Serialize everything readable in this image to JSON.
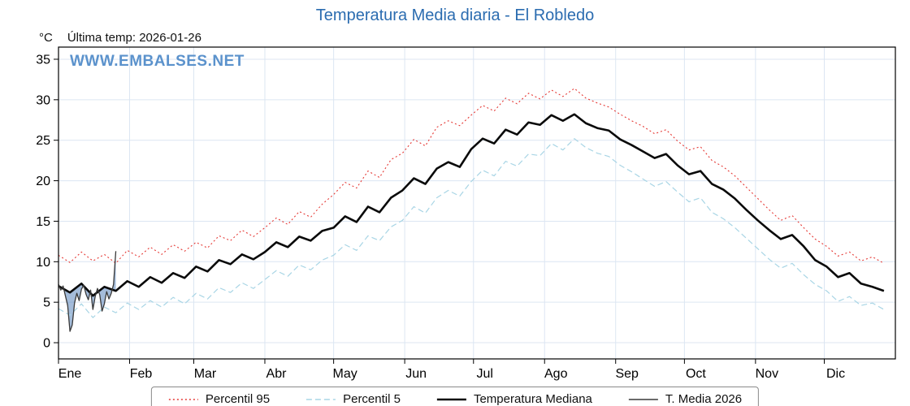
{
  "title": "Temperatura Media diaria - El Robledo",
  "header": {
    "unit_label": "°C",
    "last_temp_label": "Última temp: 2026-01-26",
    "watermark": "WWW.EMBALSES.NET"
  },
  "colors": {
    "title": "#2b6cb0",
    "watermark": "#5b92cc",
    "grid": "#dce6f2",
    "axis": "#000000",
    "anomaly_fill": "#4a7ab5"
  },
  "chart_data": {
    "type": "line",
    "title": "Temperatura Media diaria - El Robledo",
    "xlabel": "",
    "ylabel": "°C",
    "ylim": [
      -2,
      36.5
    ],
    "x_max": 365,
    "grid": true,
    "legend_position": "bottom",
    "y_ticks": [
      0,
      5,
      10,
      15,
      20,
      25,
      30,
      35
    ],
    "x_tick_days": [
      0,
      31,
      59,
      90,
      120,
      151,
      181,
      212,
      243,
      273,
      304,
      334
    ],
    "x_tick_labels": [
      "Ene",
      "Feb",
      "Mar",
      "Abr",
      "May",
      "Jun",
      "Jul",
      "Ago",
      "Sep",
      "Oct",
      "Nov",
      "Dic"
    ],
    "grid_color": "#dce6f2",
    "watermark_color": "#5b92cc",
    "fill_between": {
      "upper": "Temperatura Mediana",
      "lower": "T. Media 2026",
      "color": "#4a7ab5",
      "opacity": 0.5
    },
    "series": [
      {
        "name": "Percentil 95",
        "key": "percentil-95",
        "color": "#e53935",
        "style": "dotted",
        "width": 1.1,
        "x_step": 5,
        "values": [
          10.8,
          9.9,
          11.2,
          10.1,
          10.9,
          9.8,
          11.4,
          10.6,
          11.8,
          10.9,
          12.1,
          11.3,
          12.4,
          11.7,
          13.2,
          12.6,
          13.9,
          13.1,
          14.2,
          15.4,
          14.6,
          16.2,
          15.5,
          17.1,
          18.3,
          19.8,
          19.1,
          21.2,
          20.4,
          22.6,
          23.4,
          25.1,
          24.3,
          26.6,
          27.4,
          26.8,
          28.1,
          29.3,
          28.6,
          30.2,
          29.5,
          30.8,
          30.1,
          31.2,
          30.4,
          31.4,
          30.2,
          29.6,
          29.1,
          28.2,
          27.4,
          26.7,
          25.8,
          26.3,
          24.9,
          23.8,
          24.2,
          22.5,
          21.7,
          20.6,
          19.2,
          17.8,
          16.4,
          15.1,
          15.7,
          14.2,
          12.8,
          11.9,
          10.7,
          11.2,
          10.1,
          10.6,
          9.8
        ]
      },
      {
        "name": "Percentil 5",
        "key": "percentil-5",
        "color": "#a8d5e5",
        "style": "dashed",
        "width": 1.2,
        "x_step": 5,
        "values": [
          4.2,
          3.4,
          4.8,
          3.1,
          4.4,
          3.7,
          4.9,
          4.1,
          5.2,
          4.4,
          5.6,
          4.8,
          6.1,
          5.4,
          6.8,
          6.2,
          7.4,
          6.7,
          7.8,
          8.9,
          8.2,
          9.6,
          9.0,
          10.2,
          10.8,
          12.1,
          11.4,
          13.2,
          12.6,
          14.3,
          15.1,
          16.8,
          16.0,
          17.9,
          18.8,
          18.1,
          19.9,
          21.3,
          20.6,
          22.4,
          21.8,
          23.3,
          23.1,
          24.6,
          23.8,
          25.2,
          24.1,
          23.4,
          23.0,
          21.9,
          21.1,
          20.2,
          19.3,
          19.9,
          18.6,
          17.4,
          17.9,
          16.1,
          15.3,
          14.2,
          12.9,
          11.6,
          10.3,
          9.2,
          9.8,
          8.4,
          7.2,
          6.4,
          5.1,
          5.7,
          4.6,
          4.9,
          4.1
        ]
      },
      {
        "name": "Temperatura Mediana",
        "key": "temperatura-mediana",
        "color": "#0a0a0a",
        "style": "solid",
        "width": 2.6,
        "x_step": 5,
        "values": [
          7.0,
          6.2,
          7.3,
          5.8,
          6.9,
          6.4,
          7.6,
          6.9,
          8.1,
          7.4,
          8.6,
          8.0,
          9.4,
          8.8,
          10.2,
          9.7,
          10.9,
          10.3,
          11.2,
          12.4,
          11.8,
          13.1,
          12.6,
          13.8,
          14.2,
          15.6,
          14.9,
          16.8,
          16.1,
          17.9,
          18.8,
          20.3,
          19.6,
          21.5,
          22.3,
          21.7,
          23.9,
          25.2,
          24.6,
          26.3,
          25.7,
          27.2,
          26.9,
          28.1,
          27.4,
          28.2,
          27.1,
          26.5,
          26.2,
          25.1,
          24.4,
          23.6,
          22.8,
          23.3,
          21.9,
          20.8,
          21.2,
          19.6,
          18.9,
          17.8,
          16.4,
          15.1,
          13.9,
          12.8,
          13.3,
          11.9,
          10.2,
          9.4,
          8.1,
          8.6,
          7.3,
          6.9,
          6.4
        ]
      },
      {
        "name": "T. Media 2026",
        "key": "t-media-2026",
        "color": "#3a3a3a",
        "style": "solid",
        "width": 1.3,
        "x_step": 1,
        "values": [
          7.2,
          6.5,
          7.0,
          5.8,
          4.6,
          1.4,
          2.2,
          4.9,
          6.1,
          5.2,
          6.6,
          7.1,
          6.0,
          5.3,
          6.5,
          4.1,
          5.7,
          6.7,
          5.9,
          3.9,
          4.8,
          6.3,
          5.4,
          6.1,
          7.2,
          11.3
        ]
      }
    ]
  }
}
